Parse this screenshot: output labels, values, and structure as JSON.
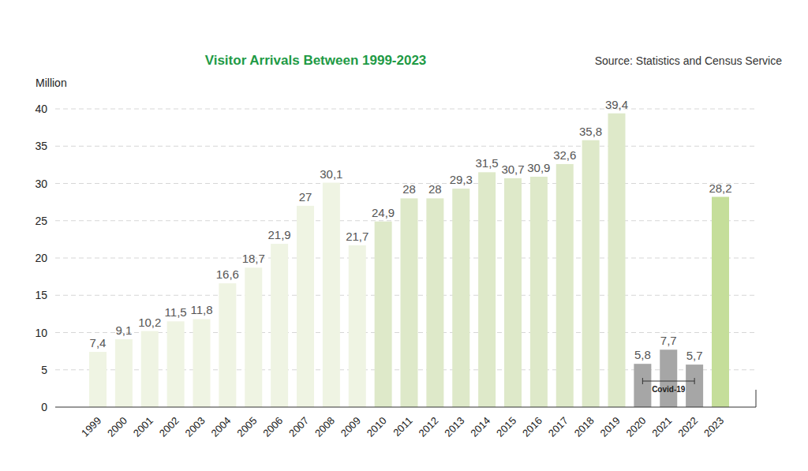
{
  "chart_data": {
    "type": "bar",
    "title": "Visitor Arrivals Between 1999-2023",
    "subtitle": "Source: Statistics and Census Service",
    "y_label": "Million",
    "categories": [
      "1999",
      "2000",
      "2001",
      "2002",
      "2003",
      "2004",
      "2005",
      "2006",
      "2007",
      "2008",
      "2009",
      "2010",
      "2011",
      "2012",
      "2013",
      "2014",
      "2015",
      "2016",
      "2017",
      "2018",
      "2019",
      "2020",
      "2021",
      "2022",
      "2023"
    ],
    "values": [
      7.4,
      9.1,
      10.2,
      11.5,
      11.8,
      16.6,
      18.7,
      21.9,
      27,
      30.1,
      21.7,
      24.9,
      28,
      28,
      29.3,
      31.5,
      30.7,
      30.9,
      32.6,
      35.8,
      39.4,
      5.8,
      7.7,
      5.7,
      28.2
    ],
    "value_labels": [
      "7,4",
      "9,1",
      "10,2",
      "11,5",
      "11,8",
      "16,6",
      "18,7",
      "21,9",
      "27",
      "30,1",
      "21,7",
      "24,9",
      "28",
      "28",
      "29,3",
      "31,5",
      "30,7",
      "30,9",
      "32,6",
      "35,8",
      "39,4",
      "5,8",
      "7,7",
      "5,7",
      "28,2"
    ],
    "colors": [
      "#eff4e3",
      "#eff4e3",
      "#eff4e3",
      "#eff4e3",
      "#eff4e3",
      "#eff4e3",
      "#eff4e3",
      "#eff4e3",
      "#eff4e3",
      "#eff4e3",
      "#eff4e3",
      "#dee9c9",
      "#dee9c9",
      "#dee9c9",
      "#dee9c9",
      "#dee9c9",
      "#dee9c9",
      "#dee9c9",
      "#dee9c9",
      "#dee9c9",
      "#dee9c9",
      "#a6a6a6",
      "#a6a6a6",
      "#a6a6a6",
      "#c5de9a"
    ],
    "annotation": {
      "text": "Covid-19",
      "from": "2020",
      "to": "2022"
    },
    "ylim": [
      0,
      40
    ],
    "yticks": [
      0,
      5,
      10,
      15,
      20,
      25,
      30,
      35,
      40
    ],
    "grid": true,
    "data_labels": true
  }
}
